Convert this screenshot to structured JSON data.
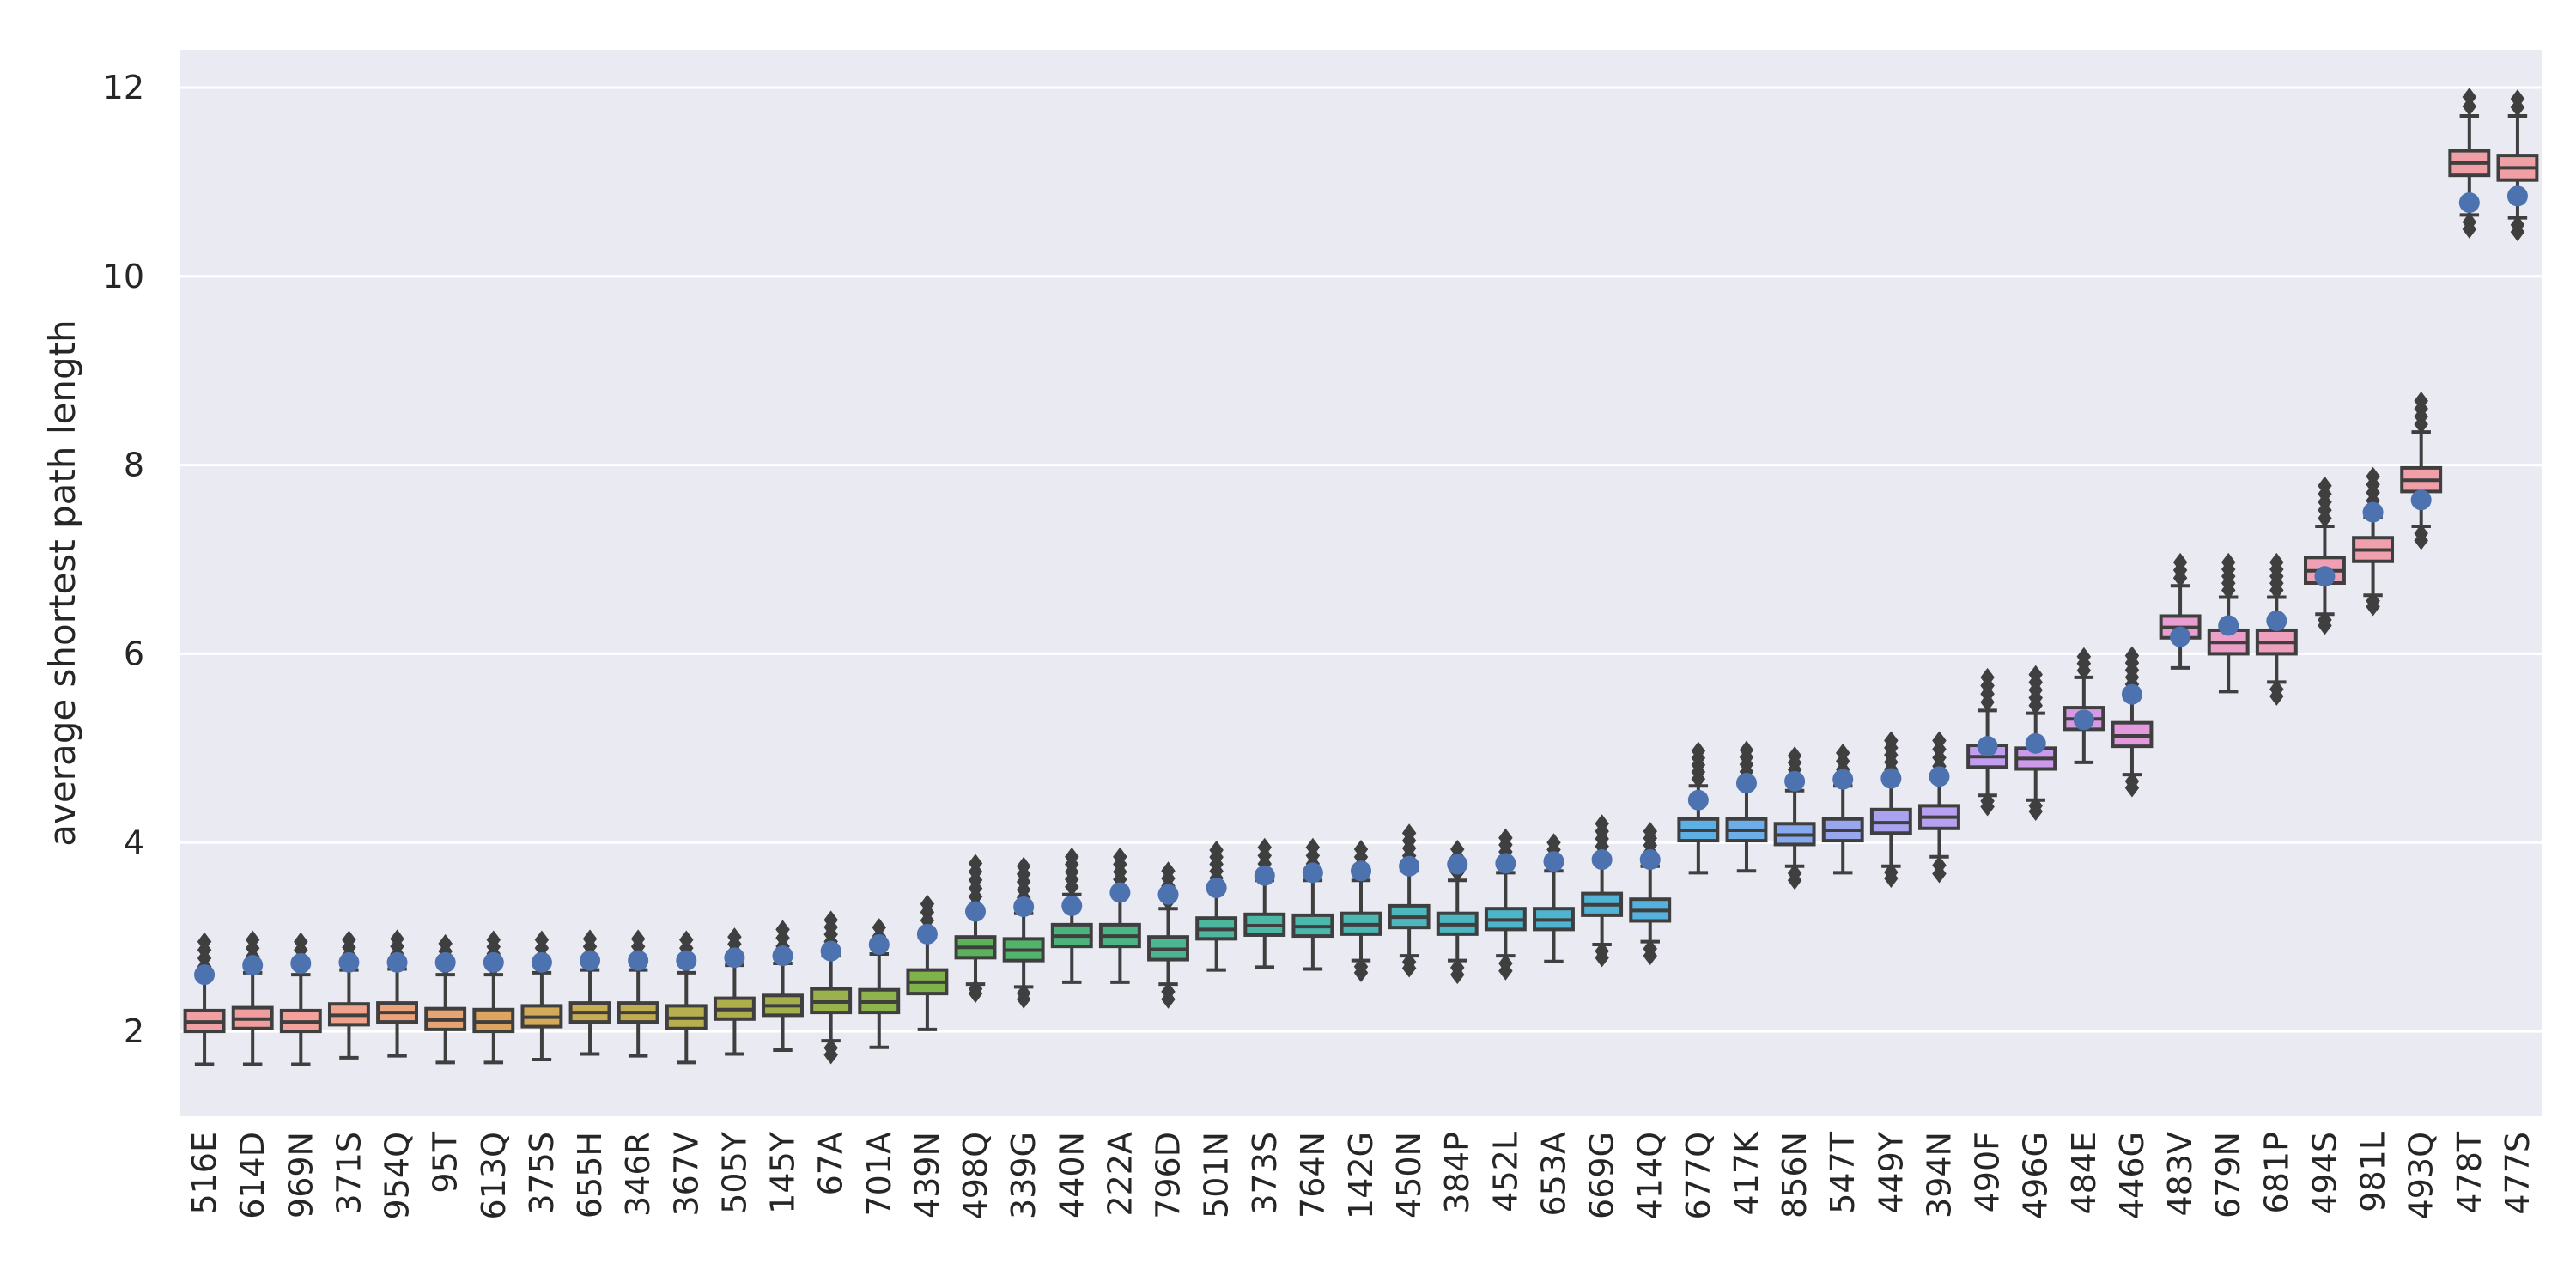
{
  "chart_data": {
    "type": "box",
    "title": "",
    "xlabel": "",
    "ylabel": "average shortest path length",
    "ylim": [
      1.1,
      12.4
    ],
    "yticks": [
      2,
      4,
      6,
      8,
      10,
      12
    ],
    "grid": true,
    "background": "#eaeaf2",
    "box_edge_color": "#3f3f3f",
    "observed_marker_color": "#4c72b0",
    "categories": [
      "516E",
      "614D",
      "969N",
      "371S",
      "954Q",
      "95T",
      "613Q",
      "375S",
      "655H",
      "346R",
      "367V",
      "505Y",
      "145Y",
      "67A",
      "701A",
      "439N",
      "498Q",
      "339G",
      "440N",
      "222A",
      "796D",
      "501N",
      "373S",
      "764N",
      "142G",
      "450N",
      "384P",
      "452L",
      "653A",
      "669G",
      "414Q",
      "677Q",
      "417K",
      "856N",
      "547T",
      "449Y",
      "394N",
      "490F",
      "496G",
      "484E",
      "446G",
      "483V",
      "679N",
      "681P",
      "494S",
      "981L",
      "493Q",
      "478T",
      "477S"
    ],
    "colors": [
      "#f0a0a3",
      "#f29d9d",
      "#f3a19a",
      "#f0a38c",
      "#eca27a",
      "#e8a371",
      "#dea560",
      "#d4a957",
      "#c9ad53",
      "#c0ad50",
      "#b7ae4d",
      "#aeaf4b",
      "#a4b04c",
      "#9ab24b",
      "#8fb44c",
      "#7fb24b",
      "#5cb259",
      "#52b36c",
      "#4cb47b",
      "#4bb585",
      "#4db591",
      "#4cb79d",
      "#4ab8a5",
      "#4bb8ac",
      "#4bb8b4",
      "#4cb7bc",
      "#4cb6c1",
      "#4db5c8",
      "#4fb4cf",
      "#52b3d6",
      "#55b1dd",
      "#5db0e3",
      "#6dade8",
      "#84a9ec",
      "#98a6ee",
      "#a8a2ef",
      "#b6a0ef",
      "#c29cee",
      "#cd99ea",
      "#d899e3",
      "#e29adc",
      "#e89dd2",
      "#eb9ec8",
      "#ee9fbe",
      "#f0a0b5",
      "#f0a0ad",
      "#f09fa8",
      "#f09fa6",
      "#f0a0a5"
    ],
    "series": [
      {
        "name": "516E",
        "whislo": 1.65,
        "q1": 2.0,
        "med": 2.1,
        "q3": 2.22,
        "whishi": 2.6,
        "flier_hi": 2.95,
        "flier_lo": null,
        "observed": 2.6
      },
      {
        "name": "614D",
        "whislo": 1.65,
        "q1": 2.03,
        "med": 2.13,
        "q3": 2.25,
        "whishi": 2.62,
        "flier_hi": 2.97,
        "flier_lo": null,
        "observed": 2.7
      },
      {
        "name": "969N",
        "whislo": 1.65,
        "q1": 2.0,
        "med": 2.1,
        "q3": 2.22,
        "whishi": 2.6,
        "flier_hi": 2.95,
        "flier_lo": null,
        "observed": 2.72
      },
      {
        "name": "371S",
        "whislo": 1.72,
        "q1": 2.07,
        "med": 2.17,
        "q3": 2.29,
        "whishi": 2.65,
        "flier_hi": 2.97,
        "flier_lo": null,
        "observed": 2.73
      },
      {
        "name": "954Q",
        "whislo": 1.74,
        "q1": 2.1,
        "med": 2.2,
        "q3": 2.3,
        "whishi": 2.66,
        "flier_hi": 2.98,
        "flier_lo": null,
        "observed": 2.73
      },
      {
        "name": "95T",
        "whislo": 1.67,
        "q1": 2.02,
        "med": 2.12,
        "q3": 2.24,
        "whishi": 2.6,
        "flier_hi": 2.93,
        "flier_lo": null,
        "observed": 2.73
      },
      {
        "name": "613Q",
        "whislo": 1.67,
        "q1": 2.0,
        "med": 2.1,
        "q3": 2.23,
        "whishi": 2.6,
        "flier_hi": 2.97,
        "flier_lo": null,
        "observed": 2.73
      },
      {
        "name": "375S",
        "whislo": 1.7,
        "q1": 2.05,
        "med": 2.15,
        "q3": 2.27,
        "whishi": 2.62,
        "flier_hi": 2.97,
        "flier_lo": null,
        "observed": 2.73
      },
      {
        "name": "655H",
        "whislo": 1.76,
        "q1": 2.1,
        "med": 2.2,
        "q3": 2.3,
        "whishi": 2.65,
        "flier_hi": 2.98,
        "flier_lo": null,
        "observed": 2.75
      },
      {
        "name": "346R",
        "whislo": 1.74,
        "q1": 2.1,
        "med": 2.2,
        "q3": 2.3,
        "whishi": 2.65,
        "flier_hi": 2.98,
        "flier_lo": null,
        "observed": 2.75
      },
      {
        "name": "367V",
        "whislo": 1.67,
        "q1": 2.03,
        "med": 2.14,
        "q3": 2.27,
        "whishi": 2.62,
        "flier_hi": 2.97,
        "flier_lo": null,
        "observed": 2.75
      },
      {
        "name": "505Y",
        "whislo": 1.76,
        "q1": 2.13,
        "med": 2.23,
        "q3": 2.35,
        "whishi": 2.7,
        "flier_hi": 3.0,
        "flier_lo": null,
        "observed": 2.78
      },
      {
        "name": "145Y",
        "whislo": 1.8,
        "q1": 2.17,
        "med": 2.27,
        "q3": 2.38,
        "whishi": 2.72,
        "flier_hi": 3.08,
        "flier_lo": null,
        "observed": 2.8
      },
      {
        "name": "67A",
        "whislo": 1.9,
        "q1": 2.2,
        "med": 2.31,
        "q3": 2.45,
        "whishi": 2.8,
        "flier_hi": 3.18,
        "flier_lo": 1.75,
        "observed": 2.85
      },
      {
        "name": "701A",
        "whislo": 1.83,
        "q1": 2.2,
        "med": 2.31,
        "q3": 2.44,
        "whishi": 2.82,
        "flier_hi": 3.1,
        "flier_lo": null,
        "observed": 2.92
      },
      {
        "name": "439N",
        "whislo": 2.02,
        "q1": 2.4,
        "med": 2.52,
        "q3": 2.65,
        "whishi": 3.0,
        "flier_hi": 3.35,
        "flier_lo": null,
        "observed": 3.03
      },
      {
        "name": "498Q",
        "whislo": 2.5,
        "q1": 2.78,
        "med": 2.89,
        "q3": 3.0,
        "whishi": 3.25,
        "flier_hi": 3.78,
        "flier_lo": 2.4,
        "observed": 3.27
      },
      {
        "name": "339G",
        "whislo": 2.47,
        "q1": 2.75,
        "med": 2.86,
        "q3": 2.98,
        "whishi": 3.25,
        "flier_hi": 3.75,
        "flier_lo": 2.34,
        "observed": 3.32
      },
      {
        "name": "440N",
        "whislo": 2.52,
        "q1": 2.9,
        "med": 3.01,
        "q3": 3.13,
        "whishi": 3.45,
        "flier_hi": 3.85,
        "flier_lo": null,
        "observed": 3.33
      },
      {
        "name": "222A",
        "whislo": 2.52,
        "q1": 2.9,
        "med": 3.01,
        "q3": 3.13,
        "whishi": 3.45,
        "flier_hi": 3.85,
        "flier_lo": null,
        "observed": 3.47
      },
      {
        "name": "796D",
        "whislo": 2.5,
        "q1": 2.76,
        "med": 2.87,
        "q3": 3.0,
        "whishi": 3.3,
        "flier_hi": 3.7,
        "flier_lo": 2.34,
        "observed": 3.45
      },
      {
        "name": "501N",
        "whislo": 2.65,
        "q1": 2.98,
        "med": 3.08,
        "q3": 3.2,
        "whishi": 3.55,
        "flier_hi": 3.92,
        "flier_lo": null,
        "observed": 3.52
      },
      {
        "name": "373S",
        "whislo": 2.68,
        "q1": 3.02,
        "med": 3.12,
        "q3": 3.24,
        "whishi": 3.6,
        "flier_hi": 3.95,
        "flier_lo": null,
        "observed": 3.65
      },
      {
        "name": "764N",
        "whislo": 2.66,
        "q1": 3.01,
        "med": 3.11,
        "q3": 3.23,
        "whishi": 3.6,
        "flier_hi": 3.95,
        "flier_lo": null,
        "observed": 3.68
      },
      {
        "name": "142G",
        "whislo": 2.75,
        "q1": 3.03,
        "med": 3.13,
        "q3": 3.25,
        "whishi": 3.6,
        "flier_hi": 3.93,
        "flier_lo": 2.62,
        "observed": 3.7
      },
      {
        "name": "450N",
        "whislo": 2.8,
        "q1": 3.1,
        "med": 3.21,
        "q3": 3.33,
        "whishi": 3.7,
        "flier_hi": 4.1,
        "flier_lo": 2.67,
        "observed": 3.75
      },
      {
        "name": "384P",
        "whislo": 2.75,
        "q1": 3.03,
        "med": 3.13,
        "q3": 3.25,
        "whishi": 3.6,
        "flier_hi": 3.93,
        "flier_lo": 2.6,
        "observed": 3.77
      },
      {
        "name": "452L",
        "whislo": 2.8,
        "q1": 3.08,
        "med": 3.18,
        "q3": 3.3,
        "whishi": 3.68,
        "flier_hi": 4.05,
        "flier_lo": 2.64,
        "observed": 3.78
      },
      {
        "name": "653A",
        "whislo": 2.74,
        "q1": 3.08,
        "med": 3.18,
        "q3": 3.3,
        "whishi": 3.7,
        "flier_hi": 4.0,
        "flier_lo": null,
        "observed": 3.8
      },
      {
        "name": "669G",
        "whislo": 2.92,
        "q1": 3.23,
        "med": 3.34,
        "q3": 3.46,
        "whishi": 3.8,
        "flier_hi": 4.2,
        "flier_lo": 2.78,
        "observed": 3.82
      },
      {
        "name": "414Q",
        "whislo": 2.95,
        "q1": 3.17,
        "med": 3.28,
        "q3": 3.4,
        "whishi": 3.75,
        "flier_hi": 4.12,
        "flier_lo": 2.8,
        "observed": 3.82
      },
      {
        "name": "677Q",
        "whislo": 3.68,
        "q1": 4.02,
        "med": 4.13,
        "q3": 4.25,
        "whishi": 4.6,
        "flier_hi": 4.97,
        "flier_lo": null,
        "observed": 4.45
      },
      {
        "name": "417K",
        "whislo": 3.7,
        "q1": 4.02,
        "med": 4.13,
        "q3": 4.25,
        "whishi": 4.6,
        "flier_hi": 4.98,
        "flier_lo": null,
        "observed": 4.63
      },
      {
        "name": "856N",
        "whislo": 3.75,
        "q1": 3.98,
        "med": 4.08,
        "q3": 4.2,
        "whishi": 4.55,
        "flier_hi": 4.92,
        "flier_lo": 3.6,
        "observed": 4.65
      },
      {
        "name": "547T",
        "whislo": 3.68,
        "q1": 4.02,
        "med": 4.13,
        "q3": 4.25,
        "whishi": 4.6,
        "flier_hi": 4.95,
        "flier_lo": null,
        "observed": 4.67
      },
      {
        "name": "449Y",
        "whislo": 3.75,
        "q1": 4.1,
        "med": 4.21,
        "q3": 4.35,
        "whishi": 4.7,
        "flier_hi": 5.08,
        "flier_lo": 3.62,
        "observed": 4.68
      },
      {
        "name": "394N",
        "whislo": 3.85,
        "q1": 4.15,
        "med": 4.27,
        "q3": 4.39,
        "whishi": 4.72,
        "flier_hi": 5.08,
        "flier_lo": 3.67,
        "observed": 4.7
      },
      {
        "name": "490F",
        "whislo": 4.5,
        "q1": 4.8,
        "med": 4.91,
        "q3": 5.03,
        "whishi": 5.4,
        "flier_hi": 5.75,
        "flier_lo": 4.38,
        "observed": 5.02
      },
      {
        "name": "496G",
        "whislo": 4.45,
        "q1": 4.78,
        "med": 4.89,
        "q3": 5.0,
        "whishi": 5.37,
        "flier_hi": 5.78,
        "flier_lo": 4.33,
        "observed": 5.05
      },
      {
        "name": "484E",
        "whislo": 4.85,
        "q1": 5.2,
        "med": 5.31,
        "q3": 5.43,
        "whishi": 5.75,
        "flier_hi": 5.97,
        "flier_lo": null,
        "observed": 5.3
      },
      {
        "name": "446G",
        "whislo": 4.72,
        "q1": 5.02,
        "med": 5.13,
        "q3": 5.27,
        "whishi": 5.6,
        "flier_hi": 5.98,
        "flier_lo": 4.58,
        "observed": 5.57
      },
      {
        "name": "483V",
        "whislo": 5.85,
        "q1": 6.17,
        "med": 6.28,
        "q3": 6.4,
        "whishi": 6.72,
        "flier_hi": 6.97,
        "flier_lo": null,
        "observed": 6.18
      },
      {
        "name": "679N",
        "whislo": 5.6,
        "q1": 6.0,
        "med": 6.12,
        "q3": 6.25,
        "whishi": 6.6,
        "flier_hi": 6.97,
        "flier_lo": null,
        "observed": 6.3
      },
      {
        "name": "681P",
        "whislo": 5.7,
        "q1": 6.0,
        "med": 6.12,
        "q3": 6.25,
        "whishi": 6.6,
        "flier_hi": 6.97,
        "flier_lo": 5.55,
        "observed": 6.35
      },
      {
        "name": "494S",
        "whislo": 6.42,
        "q1": 6.75,
        "med": 6.88,
        "q3": 7.02,
        "whishi": 7.35,
        "flier_hi": 7.78,
        "flier_lo": 6.3,
        "observed": 6.82
      },
      {
        "name": "981L",
        "whislo": 6.62,
        "q1": 6.98,
        "med": 7.1,
        "q3": 7.23,
        "whishi": 7.45,
        "flier_hi": 7.88,
        "flier_lo": 6.5,
        "observed": 7.5
      },
      {
        "name": "493Q",
        "whislo": 7.35,
        "q1": 7.72,
        "med": 7.84,
        "q3": 7.97,
        "whishi": 8.35,
        "flier_hi": 8.68,
        "flier_lo": 7.2,
        "observed": 7.63
      },
      {
        "name": "478T",
        "whislo": 10.65,
        "q1": 11.07,
        "med": 11.2,
        "q3": 11.33,
        "whishi": 11.7,
        "flier_hi": 11.9,
        "flier_lo": 10.5,
        "observed": 10.78
      },
      {
        "name": "477S",
        "whislo": 10.62,
        "q1": 11.02,
        "med": 11.15,
        "q3": 11.28,
        "whishi": 11.7,
        "flier_hi": 11.88,
        "flier_lo": 10.47,
        "observed": 10.85
      }
    ]
  }
}
